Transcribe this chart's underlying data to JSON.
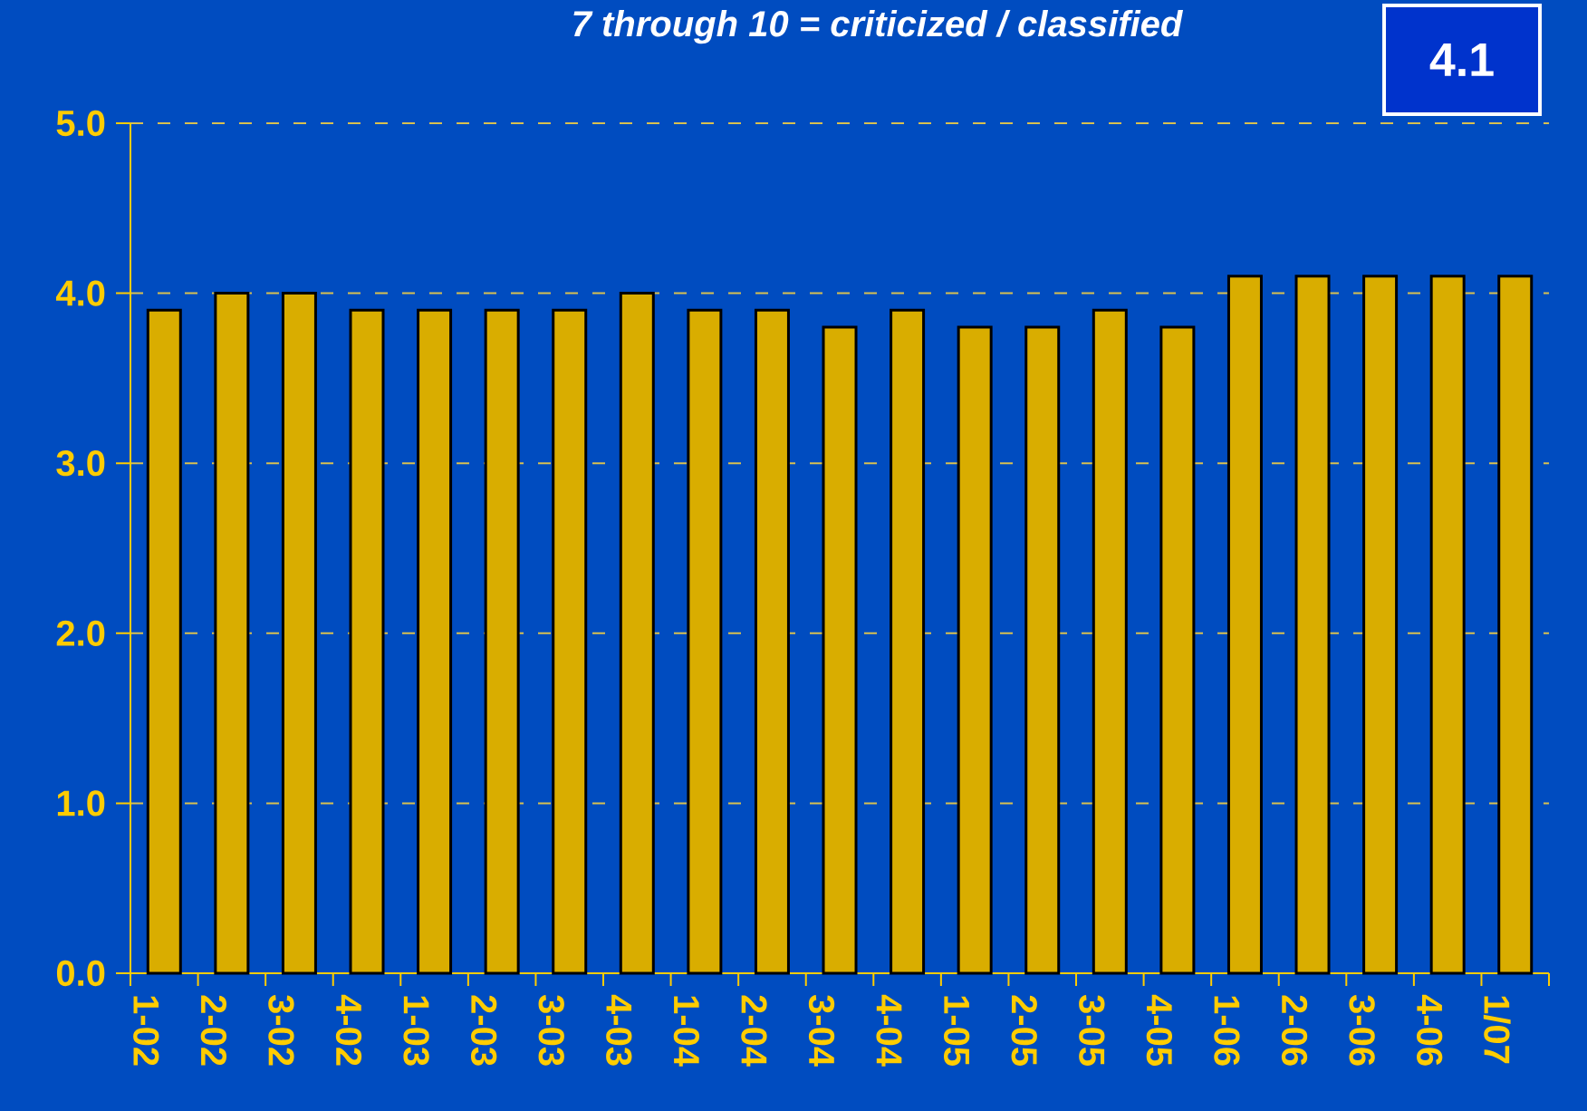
{
  "chart_data": {
    "type": "bar",
    "title": "7 through 10 = criticized / classified",
    "annotations": [
      "4.1"
    ],
    "categories": [
      "1-02",
      "2-02",
      "3-02",
      "4-02",
      "1-03",
      "2-03",
      "3-03",
      "4-03",
      "1-04",
      "2-04",
      "3-04",
      "4-04",
      "1-05",
      "2-05",
      "3-05",
      "4-05",
      "1-06",
      "2-06",
      "3-06",
      "4-06",
      "1/07"
    ],
    "values": [
      3.9,
      4.0,
      4.0,
      3.9,
      3.9,
      3.9,
      3.9,
      4.0,
      3.9,
      3.9,
      3.8,
      3.9,
      3.8,
      3.8,
      3.9,
      3.8,
      4.1,
      4.1,
      4.1,
      4.1,
      4.1
    ],
    "color": "#d9ad00",
    "ylim": [
      0,
      5
    ],
    "yticks": [
      {
        "value": 0,
        "label": "0.0"
      },
      {
        "value": 1,
        "label": "1.0"
      },
      {
        "value": 2,
        "label": "2.0"
      },
      {
        "value": 3,
        "label": "3.0"
      },
      {
        "value": 4,
        "label": "4.0"
      },
      {
        "value": 5,
        "label": "5.0"
      }
    ],
    "grid": "y"
  }
}
